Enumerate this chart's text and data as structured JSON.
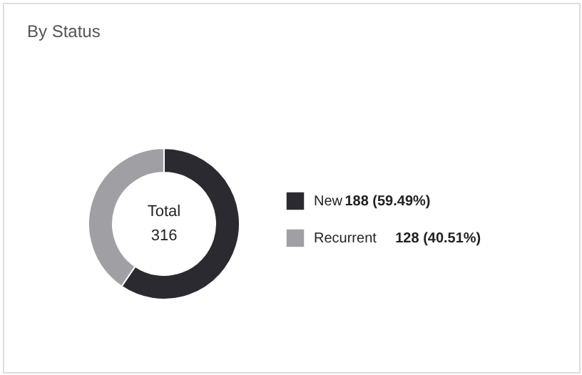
{
  "chart_data": {
    "type": "donut",
    "title": "By Status",
    "categories": [
      "New",
      "Recurrent"
    ],
    "values": [
      188,
      128
    ],
    "colors": [
      "#2b2a30",
      "#a09fa4"
    ],
    "value_labels": [
      "188 (59.49%)",
      "128 (40.51%)"
    ],
    "annotations": [
      "Total",
      "316"
    ],
    "legend": "right"
  }
}
